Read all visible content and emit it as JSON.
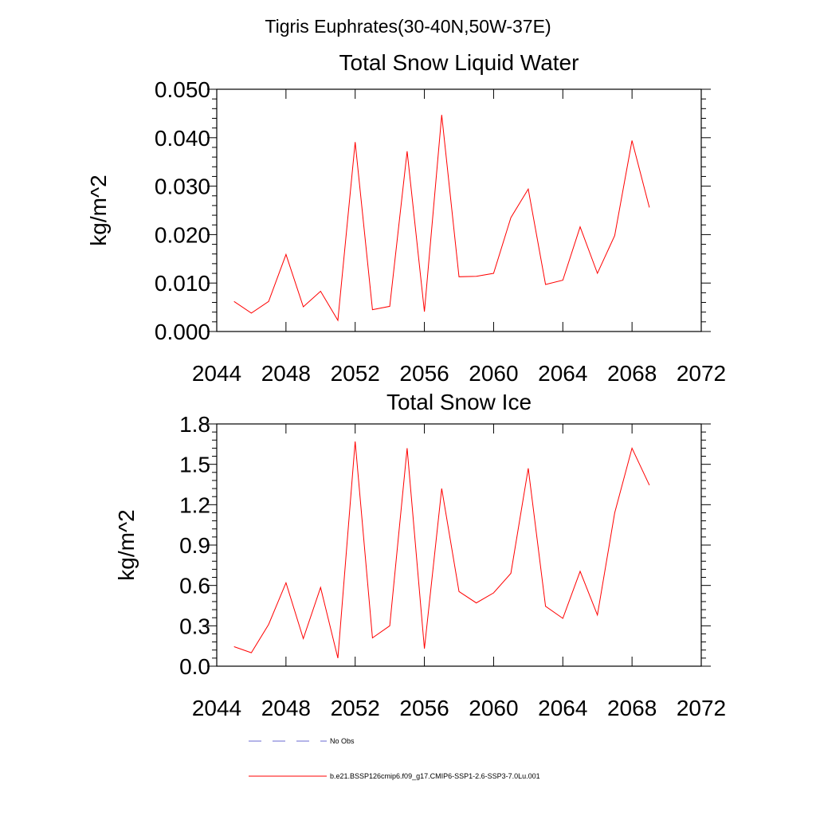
{
  "figure": {
    "title": "Tigris Euphrates(30-40N,50W-37E)"
  },
  "chart_data": [
    {
      "type": "line",
      "title": "Total Snow Liquid Water",
      "xlabel": "",
      "ylabel": "kg/m^2",
      "xlim": [
        2044,
        2072
      ],
      "ylim": [
        0,
        0.05
      ],
      "x_ticks": [
        2044,
        2048,
        2052,
        2056,
        2060,
        2064,
        2068,
        2072
      ],
      "x_tick_labels": [
        "2044",
        "2048",
        "2052",
        "2056",
        "2060",
        "2064",
        "2068",
        "2072"
      ],
      "y_ticks": [
        0,
        0.01,
        0.02,
        0.03,
        0.04,
        0.05
      ],
      "y_tick_labels": [
        "0.000",
        "0.010",
        "0.020",
        "0.030",
        "0.040",
        "0.050"
      ],
      "x": [
        2045,
        2046,
        2047,
        2048,
        2049,
        2050,
        2051,
        2052,
        2053,
        2054,
        2055,
        2056,
        2057,
        2058,
        2059,
        2060,
        2061,
        2062,
        2063,
        2064,
        2065,
        2066,
        2067,
        2068,
        2069
      ],
      "series": [
        {
          "color": "#ff0000",
          "values": [
            0.0062,
            0.0038,
            0.0062,
            0.0159,
            0.0051,
            0.0083,
            0.0023,
            0.0391,
            0.0045,
            0.0052,
            0.0372,
            0.0041,
            0.0447,
            0.0113,
            0.0114,
            0.012,
            0.0235,
            0.0294,
            0.0097,
            0.0106,
            0.0216,
            0.012,
            0.0198,
            0.0394,
            0.0256
          ]
        }
      ],
      "grid": false
    },
    {
      "type": "line",
      "title": "Total Snow Ice",
      "xlabel": "",
      "ylabel": "kg/m^2",
      "xlim": [
        2044,
        2072
      ],
      "ylim": [
        0,
        1.8
      ],
      "x_ticks": [
        2044,
        2048,
        2052,
        2056,
        2060,
        2064,
        2068,
        2072
      ],
      "x_tick_labels": [
        "2044",
        "2048",
        "2052",
        "2056",
        "2060",
        "2064",
        "2068",
        "2072"
      ],
      "y_ticks": [
        0,
        0.3,
        0.6,
        0.9,
        1.2,
        1.5,
        1.8
      ],
      "y_tick_labels": [
        "0.0",
        "0.3",
        "0.6",
        "0.9",
        "1.2",
        "1.5",
        "1.8"
      ],
      "x": [
        2045,
        2046,
        2047,
        2048,
        2049,
        2050,
        2051,
        2052,
        2053,
        2054,
        2055,
        2056,
        2057,
        2058,
        2059,
        2060,
        2061,
        2062,
        2063,
        2064,
        2065,
        2066,
        2067,
        2068,
        2069
      ],
      "series": [
        {
          "color": "#ff0000",
          "values": [
            0.145,
            0.1,
            0.31,
            0.62,
            0.205,
            0.585,
            0.06,
            1.67,
            0.21,
            0.3,
            1.62,
            0.13,
            1.32,
            0.555,
            0.47,
            0.545,
            0.69,
            1.47,
            0.445,
            0.355,
            0.705,
            0.38,
            1.14,
            1.62,
            1.345
          ]
        }
      ],
      "grid": false
    }
  ],
  "legend": {
    "placement": "bottom",
    "items": [
      {
        "label": "No Obs",
        "color": "#6a6ad0",
        "style": "dashed"
      },
      {
        "label": "b.e21.BSSP126cmip6.f09_g17.CMIP6-SSP1-2.6-SSP3-7.0Lu.001",
        "color": "#ff0000",
        "style": "solid"
      }
    ]
  }
}
